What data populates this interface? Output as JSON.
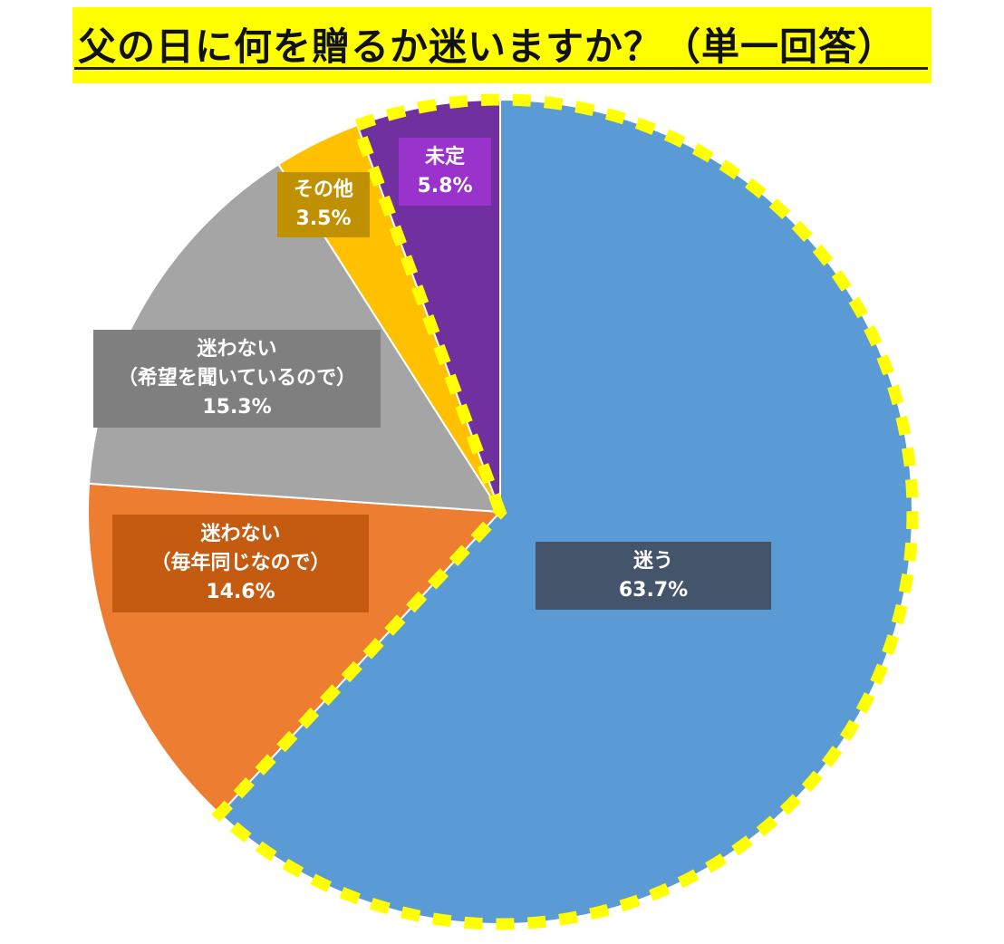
{
  "title": "父の日に何を贈るか迷いますか？（単一回答）",
  "colors": {
    "title_bg": "#FFFF00",
    "highlight_border": "#FFFF00"
  },
  "chart_data": {
    "type": "pie",
    "title": "父の日に何を贈るか迷いますか？（単一回答）",
    "start": "12 o'clock, clockwise",
    "highlight": "dashed yellow outline around 迷う + 未定",
    "slices": [
      {
        "label": "迷う",
        "label_lines": [
          "迷う"
        ],
        "value": 63.7,
        "display": "63.7%",
        "color": "#5B9BD5",
        "label_bg": "#44546A"
      },
      {
        "label": "迷わない（毎年同じなので）",
        "label_lines": [
          "迷わない",
          "（毎年同じなので）"
        ],
        "value": 14.6,
        "display": "14.6%",
        "color": "#ED7D31",
        "label_bg": "#C55A11"
      },
      {
        "label": "迷わない（希望を聞いているので）",
        "label_lines": [
          "迷わない",
          "（希望を聞いているので）"
        ],
        "value": 15.3,
        "display": "15.3%",
        "color": "#A5A5A5",
        "label_bg": "#7F7F7F"
      },
      {
        "label": "その他",
        "label_lines": [
          "その他"
        ],
        "value": 3.5,
        "display": "3.5%",
        "color": "#FFC000",
        "label_bg": "#BF9000"
      },
      {
        "label": "未定",
        "label_lines": [
          "未定"
        ],
        "value": 5.8,
        "display": "5.8%",
        "color": "#7030A0",
        "label_bg": "#9933CC"
      }
    ]
  }
}
